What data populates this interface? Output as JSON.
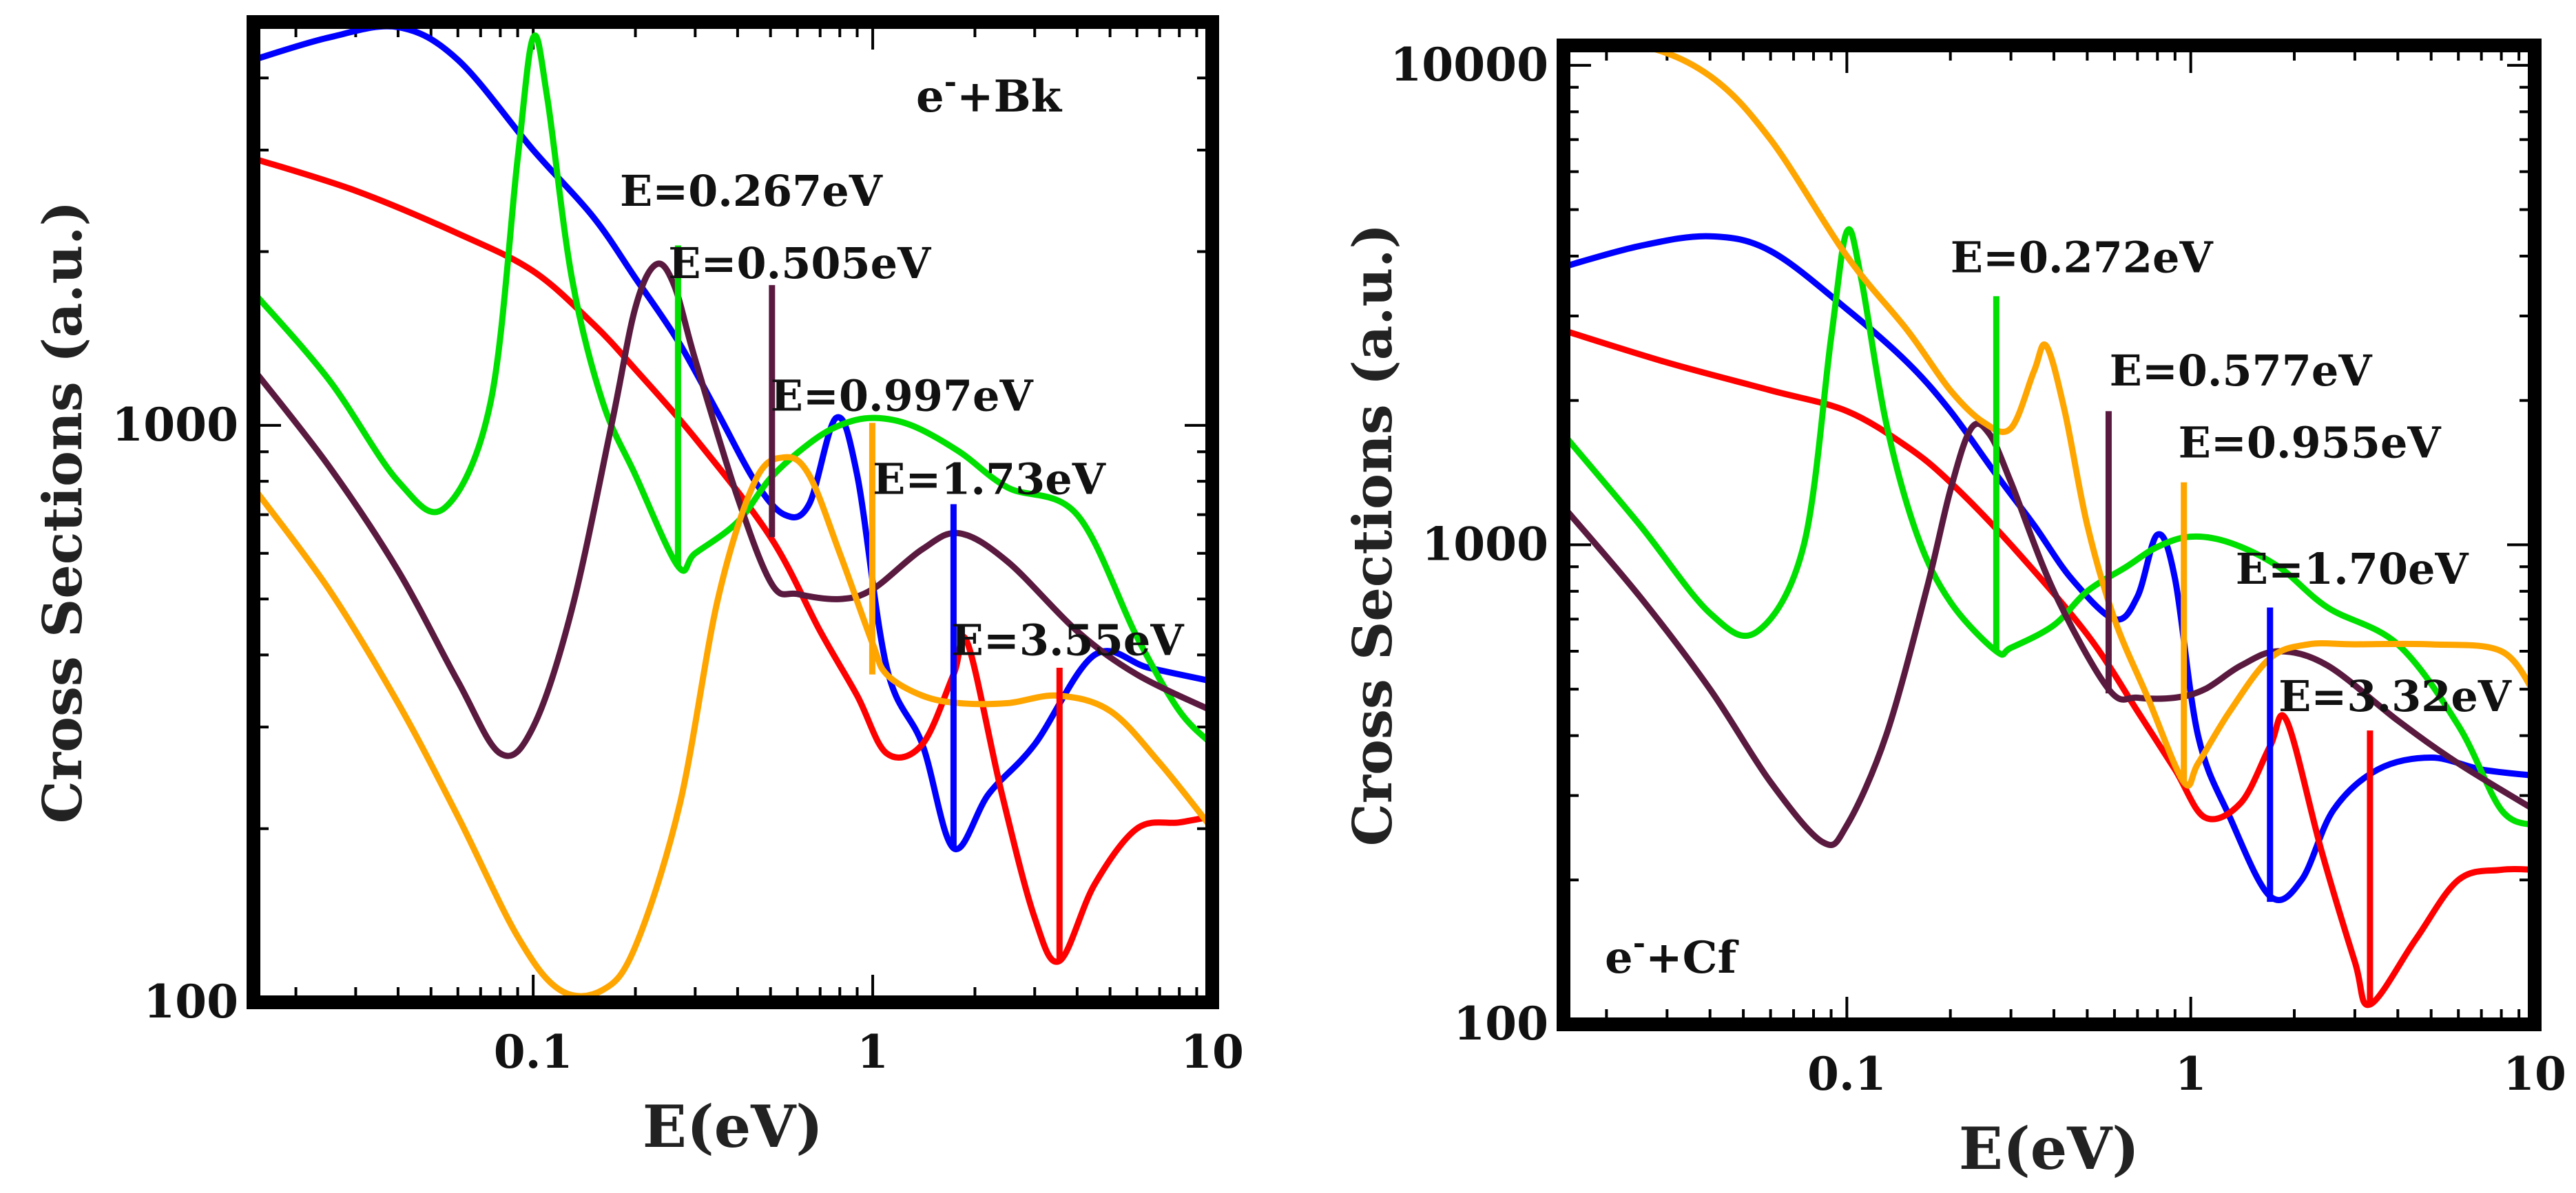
{
  "chart_data": [
    {
      "type": "line",
      "x_scale": "log",
      "y_scale": "log",
      "xlim": [
        0.015,
        10
      ],
      "ylim": [
        100,
        5000
      ],
      "xlabel": "E(eV)",
      "ylabel": "Cross Sections (a.u.)",
      "x_ticks": [
        {
          "value": 0.1,
          "label": "0.1"
        },
        {
          "value": 1,
          "label": "1"
        },
        {
          "value": 10,
          "label": "10"
        }
      ],
      "y_ticks": [
        {
          "value": 100,
          "label": "100"
        },
        {
          "value": 1000,
          "label": "1000"
        }
      ],
      "system_label": {
        "base": "e",
        "sup": "-",
        "rest": "+Bk",
        "corner": "top-right"
      },
      "annotations": [
        {
          "label": "E=0.267eV",
          "x": 0.267,
          "marker_y_top": 2050,
          "marker_y_bottom": 570,
          "color": "#00e000",
          "text_x": 0.18,
          "text_y": 2400
        },
        {
          "label": "E=0.505eV",
          "x": 0.505,
          "marker_y_top": 1750,
          "marker_y_bottom": 640,
          "color": "#5a1a40",
          "text_x": 0.25,
          "text_y": 1800
        },
        {
          "label": "E=0.997eV",
          "x": 0.997,
          "marker_y_top": 1010,
          "marker_y_bottom": 370,
          "color": "#ffa500",
          "text_x": 0.5,
          "text_y": 1060
        },
        {
          "label": "E=1.73eV",
          "x": 1.73,
          "marker_y_top": 730,
          "marker_y_bottom": 185,
          "color": "#0000ff",
          "text_x": 1.0,
          "text_y": 760
        },
        {
          "label": "E=3.55eV",
          "x": 3.55,
          "marker_y_top": 380,
          "marker_y_bottom": 118,
          "color": "#ff0000",
          "text_x": 1.7,
          "text_y": 400
        }
      ],
      "series": [
        {
          "name": "blue",
          "color": "#0000ff",
          "x": [
            0.015,
            0.025,
            0.04,
            0.06,
            0.1,
            0.15,
            0.2,
            0.267,
            0.35,
            0.45,
            0.55,
            0.65,
            0.78,
            0.9,
            1.1,
            1.4,
            1.73,
            2.2,
            3.0,
            4.5,
            6.5,
            10
          ],
          "y": [
            4300,
            4700,
            4900,
            4300,
            3000,
            2300,
            1800,
            1400,
            1050,
            800,
            700,
            730,
            1030,
            820,
            380,
            280,
            185,
            230,
            280,
            400,
            380,
            360
          ]
        },
        {
          "name": "red",
          "color": "#ff0000",
          "x": [
            0.015,
            0.03,
            0.06,
            0.1,
            0.15,
            0.2,
            0.3,
            0.5,
            0.7,
            0.9,
            1.1,
            1.4,
            1.73,
            1.9,
            2.4,
            3.0,
            3.55,
            4.5,
            6.0,
            8.0,
            10
          ],
          "y": [
            2900,
            2550,
            2150,
            1850,
            1500,
            1250,
            950,
            640,
            440,
            340,
            270,
            280,
            370,
            420,
            230,
            140,
            118,
            160,
            200,
            205,
            210
          ]
        },
        {
          "name": "green",
          "color": "#00e000",
          "x": [
            0.015,
            0.025,
            0.04,
            0.055,
            0.075,
            0.09,
            0.1,
            0.11,
            0.13,
            0.16,
            0.2,
            0.267,
            0.3,
            0.4,
            0.5,
            0.65,
            0.8,
            1.0,
            1.3,
            1.8,
            2.5,
            4.0,
            6.0,
            8.0,
            10
          ],
          "y": [
            1700,
            1200,
            800,
            720,
            1100,
            2900,
            4700,
            3700,
            1800,
            1100,
            820,
            570,
            600,
            680,
            810,
            930,
            1000,
            1030,
            1000,
            900,
            780,
            700,
            430,
            320,
            280
          ]
        },
        {
          "name": "purple",
          "color": "#5a1a40",
          "x": [
            0.015,
            0.025,
            0.04,
            0.06,
            0.08,
            0.1,
            0.13,
            0.17,
            0.2,
            0.23,
            0.26,
            0.3,
            0.4,
            0.505,
            0.6,
            0.8,
            1.0,
            1.4,
            1.8,
            2.5,
            4.0,
            6.0,
            10
          ],
          "y": [
            1250,
            850,
            560,
            360,
            270,
            300,
            480,
            1000,
            1600,
            1900,
            1750,
            1300,
            750,
            530,
            510,
            500,
            520,
            610,
            650,
            580,
            440,
            370,
            320
          ]
        },
        {
          "name": "orange",
          "color": "#ffa500",
          "x": [
            0.015,
            0.025,
            0.04,
            0.06,
            0.09,
            0.12,
            0.16,
            0.2,
            0.27,
            0.35,
            0.45,
            0.55,
            0.65,
            0.8,
            0.997,
            1.1,
            1.4,
            1.8,
            2.5,
            3.5,
            5.0,
            7.0,
            10
          ],
          "y": [
            780,
            520,
            330,
            210,
            130,
            105,
            105,
            125,
            220,
            500,
            800,
            880,
            820,
            600,
            420,
            370,
            340,
            330,
            330,
            340,
            320,
            260,
            200
          ]
        }
      ]
    },
    {
      "type": "line",
      "x_scale": "log",
      "y_scale": "log",
      "xlim": [
        0.015,
        10
      ],
      "ylim": [
        100,
        11000
      ],
      "xlabel": "E(eV)",
      "ylabel": "Cross Sections (a.u.)",
      "x_ticks": [
        {
          "value": 0.1,
          "label": "0.1"
        },
        {
          "value": 1,
          "label": "1"
        },
        {
          "value": 10,
          "label": "10"
        }
      ],
      "y_ticks": [
        {
          "value": 100,
          "label": "100"
        },
        {
          "value": 1000,
          "label": "1000"
        },
        {
          "value": 10000,
          "label": "10000"
        }
      ],
      "system_label": {
        "base": "e",
        "sup": "-",
        "rest": "+Cf",
        "corner": "bottom-left"
      },
      "annotations": [
        {
          "label": "E=0.272eV",
          "x": 0.272,
          "marker_y_top": 3300,
          "marker_y_bottom": 600,
          "color": "#00e000",
          "text_x": 0.2,
          "text_y": 3700
        },
        {
          "label": "E=0.577eV",
          "x": 0.577,
          "marker_y_top": 1900,
          "marker_y_bottom": 490,
          "color": "#5a1a40",
          "text_x": 0.58,
          "text_y": 2150
        },
        {
          "label": "E=0.955eV",
          "x": 0.955,
          "marker_y_top": 1350,
          "marker_y_bottom": 320,
          "color": "#ffa500",
          "text_x": 0.92,
          "text_y": 1520
        },
        {
          "label": "E=1.70eV",
          "x": 1.7,
          "marker_y_top": 740,
          "marker_y_bottom": 180,
          "color": "#0000ff",
          "text_x": 1.35,
          "text_y": 830
        },
        {
          "label": "E=3.32eV",
          "x": 3.32,
          "marker_y_top": 410,
          "marker_y_bottom": 110,
          "color": "#ff0000",
          "text_x": 1.8,
          "text_y": 450
        }
      ],
      "series": [
        {
          "name": "blue",
          "color": "#0000ff",
          "x": [
            0.015,
            0.025,
            0.04,
            0.06,
            0.1,
            0.15,
            0.2,
            0.272,
            0.35,
            0.45,
            0.6,
            0.7,
            0.8,
            0.9,
            1.05,
            1.3,
            1.7,
            2.1,
            2.6,
            3.5,
            5.0,
            7.0,
            10
          ],
          "y": [
            3800,
            4200,
            4400,
            4100,
            3100,
            2400,
            1900,
            1400,
            1100,
            850,
            700,
            780,
            1050,
            850,
            400,
            270,
            185,
            200,
            280,
            340,
            360,
            340,
            330
          ]
        },
        {
          "name": "red",
          "color": "#ff0000",
          "x": [
            0.015,
            0.03,
            0.06,
            0.1,
            0.15,
            0.2,
            0.3,
            0.5,
            0.7,
            0.9,
            1.1,
            1.4,
            1.7,
            1.9,
            2.4,
            3.0,
            3.32,
            4.5,
            6.0,
            8.0,
            10
          ],
          "y": [
            2800,
            2400,
            2100,
            1900,
            1600,
            1350,
            1000,
            650,
            450,
            340,
            270,
            290,
            380,
            430,
            230,
            135,
            110,
            150,
            200,
            210,
            210
          ]
        },
        {
          "name": "green",
          "color": "#00e000",
          "x": [
            0.015,
            0.025,
            0.04,
            0.055,
            0.075,
            0.09,
            0.1,
            0.11,
            0.13,
            0.16,
            0.2,
            0.272,
            0.3,
            0.4,
            0.5,
            0.65,
            0.8,
            1.0,
            1.3,
            1.8,
            2.5,
            4.0,
            6.0,
            8.0,
            10
          ],
          "y": [
            1700,
            1100,
            720,
            660,
            1000,
            2700,
            4500,
            3600,
            1800,
            1050,
            760,
            600,
            610,
            680,
            800,
            900,
            990,
            1040,
            1010,
            900,
            740,
            620,
            420,
            280,
            260
          ]
        },
        {
          "name": "purple",
          "color": "#5a1a40",
          "x": [
            0.015,
            0.025,
            0.04,
            0.06,
            0.085,
            0.1,
            0.13,
            0.17,
            0.2,
            0.23,
            0.26,
            0.3,
            0.4,
            0.577,
            0.7,
            0.9,
            1.1,
            1.4,
            1.8,
            2.5,
            4.0,
            6.0,
            10
          ],
          "y": [
            1200,
            780,
            500,
            320,
            240,
            260,
            400,
            800,
            1300,
            1750,
            1700,
            1350,
            800,
            500,
            480,
            480,
            500,
            560,
            600,
            560,
            430,
            350,
            280
          ]
        },
        {
          "name": "orange",
          "color": "#ffa500",
          "x": [
            0.015,
            0.025,
            0.04,
            0.06,
            0.1,
            0.15,
            0.2,
            0.25,
            0.3,
            0.35,
            0.38,
            0.43,
            0.5,
            0.6,
            0.75,
            0.955,
            1.05,
            1.3,
            1.7,
            2.2,
            3.0,
            5.0,
            8.0,
            10
          ],
          "y": [
            11000,
            11000,
            9500,
            7000,
            4000,
            2800,
            2100,
            1800,
            1750,
            2300,
            2600,
            1900,
            1100,
            700,
            480,
            320,
            350,
            450,
            580,
            620,
            620,
            620,
            600,
            490
          ]
        }
      ]
    }
  ]
}
